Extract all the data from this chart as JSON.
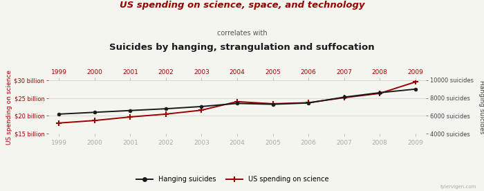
{
  "years": [
    1999,
    2000,
    2001,
    2002,
    2003,
    2004,
    2005,
    2006,
    2007,
    2008,
    2009
  ],
  "hanging_suicides": [
    6200,
    6400,
    6600,
    6800,
    7050,
    7400,
    7300,
    7450,
    8100,
    8600,
    9000
  ],
  "us_spending_billions": [
    18.0,
    18.7,
    19.7,
    20.5,
    21.6,
    24.0,
    23.4,
    23.7,
    25.1,
    26.3,
    29.5
  ],
  "left_ylim": [
    15,
    30
  ],
  "right_ylim": [
    4000,
    10000
  ],
  "left_yticks": [
    15,
    20,
    25,
    30
  ],
  "right_yticks": [
    4000,
    6000,
    8000,
    10000
  ],
  "title_line1": "US spending on science, space, and technology",
  "title_line2": "correlates with",
  "title_line3": "Suicides by hanging, strangulation and suffocation",
  "left_ylabel": "US spending on science",
  "right_ylabel": "Hanging suicides",
  "color_spending": "#990000",
  "color_hanging": "#1a1a1a",
  "legend_label_hanging": "Hanging suicides",
  "legend_label_spending": "US spending on science",
  "watermark": "tylervigen.com",
  "bg_color": "#f5f5f0"
}
